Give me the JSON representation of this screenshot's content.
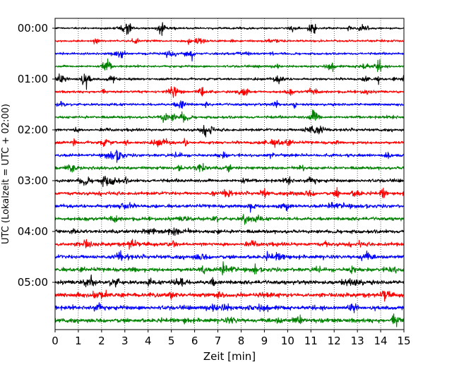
{
  "chart_data": {
    "type": "line",
    "title": "",
    "xlabel": "Zeit  [min]",
    "ylabel": "UTC (Lokalzeit = UTC + 02:00)",
    "xlim": [
      0,
      15
    ],
    "x_ticks": [
      "0",
      "1",
      "2",
      "3",
      "4",
      "5",
      "6",
      "7",
      "8",
      "9",
      "10",
      "11",
      "12",
      "13",
      "14",
      "15"
    ],
    "y_ticks": [
      "00:00",
      "01:00",
      "02:00",
      "03:00",
      "04:00",
      "05:00"
    ],
    "grid": "vertical dotted",
    "trace_interval_min": 15,
    "trace_colors": [
      "#000000",
      "#ff0000",
      "#0000ff",
      "#008000"
    ],
    "traces": [
      {
        "start": "00:00",
        "color": "#000000"
      },
      {
        "start": "00:15",
        "color": "#ff0000"
      },
      {
        "start": "00:30",
        "color": "#0000ff"
      },
      {
        "start": "00:45",
        "color": "#008000"
      },
      {
        "start": "01:00",
        "color": "#000000"
      },
      {
        "start": "01:15",
        "color": "#ff0000"
      },
      {
        "start": "01:30",
        "color": "#0000ff"
      },
      {
        "start": "01:45",
        "color": "#008000"
      },
      {
        "start": "02:00",
        "color": "#000000"
      },
      {
        "start": "02:15",
        "color": "#ff0000"
      },
      {
        "start": "02:30",
        "color": "#0000ff"
      },
      {
        "start": "02:45",
        "color": "#008000"
      },
      {
        "start": "03:00",
        "color": "#000000"
      },
      {
        "start": "03:15",
        "color": "#ff0000"
      },
      {
        "start": "03:30",
        "color": "#0000ff"
      },
      {
        "start": "03:45",
        "color": "#008000"
      },
      {
        "start": "04:00",
        "color": "#000000"
      },
      {
        "start": "04:15",
        "color": "#ff0000"
      },
      {
        "start": "04:30",
        "color": "#0000ff"
      },
      {
        "start": "04:45",
        "color": "#008000"
      },
      {
        "start": "05:00",
        "color": "#000000"
      },
      {
        "start": "05:15",
        "color": "#ff0000"
      },
      {
        "start": "05:30",
        "color": "#0000ff"
      },
      {
        "start": "05:45",
        "color": "#008000"
      }
    ]
  }
}
